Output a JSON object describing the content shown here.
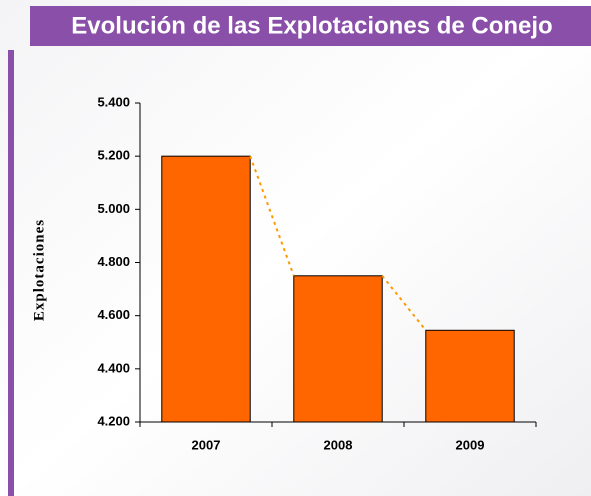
{
  "chart_data": {
    "type": "bar",
    "title": "Evolución de las Explotaciones de Conejo",
    "y_label": "Explotaciones",
    "categories": [
      "2007",
      "2008",
      "2009"
    ],
    "values": [
      5200,
      4750,
      4545
    ],
    "color": "#ff6600",
    "trend_color": "#ff9900",
    "ylim": [
      4200,
      5400
    ],
    "yticks": [
      {
        "value": 4200,
        "label": "4.200"
      },
      {
        "value": 4400,
        "label": "4.400"
      },
      {
        "value": 4600,
        "label": "4.600"
      },
      {
        "value": 4800,
        "label": "4.800"
      },
      {
        "value": 5000,
        "label": "5.000"
      },
      {
        "value": 5200,
        "label": "5.200"
      },
      {
        "value": 5400,
        "label": "5.400"
      }
    ]
  }
}
